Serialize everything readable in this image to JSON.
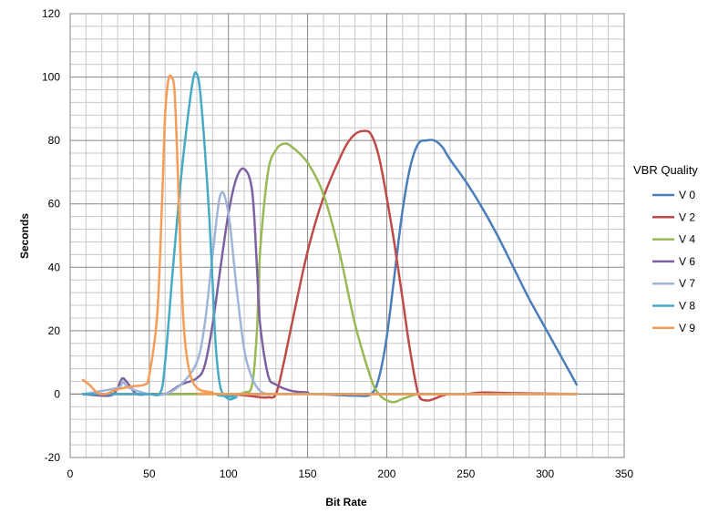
{
  "chart_data": {
    "type": "line",
    "title": "",
    "xlabel": "Bit Rate",
    "ylabel": "Seconds",
    "xlim": [
      0,
      350
    ],
    "ylim": [
      -20,
      120
    ],
    "x_ticks": [
      "0",
      "50",
      "100",
      "150",
      "200",
      "250",
      "300",
      "350"
    ],
    "y_ticks": [
      "-20",
      "0",
      "20",
      "40",
      "60",
      "80",
      "100",
      "120"
    ],
    "grid": true,
    "legend": {
      "title": "VBR Quality",
      "position": "right"
    },
    "series": [
      {
        "name": "V 0",
        "color": "#4a7ebb",
        "x": [
          8,
          25,
          60,
          100,
          150,
          180,
          190,
          195,
          200,
          205,
          210,
          215,
          220,
          225,
          230,
          235,
          240,
          250,
          260,
          270,
          280,
          290,
          300,
          310,
          320
        ],
        "y": [
          0,
          0,
          0,
          0,
          0,
          -0.5,
          0,
          5,
          18,
          38,
          58,
          72,
          79,
          80,
          80,
          78,
          74,
          67,
          59,
          50,
          40,
          30,
          21,
          12,
          3
        ]
      },
      {
        "name": "V 2",
        "color": "#be4b48",
        "x": [
          8,
          60,
          100,
          120,
          125,
          130,
          135,
          140,
          150,
          160,
          170,
          175,
          180,
          185,
          190,
          195,
          200,
          205,
          210,
          215,
          220,
          225,
          230,
          235,
          240,
          250,
          260,
          280,
          320
        ],
        "y": [
          0,
          0,
          0,
          -1,
          -1,
          0,
          10,
          22,
          45,
          62,
          74,
          79,
          82,
          83,
          82,
          75,
          62,
          47,
          30,
          13,
          0,
          -2,
          -1.5,
          -0.5,
          0,
          0,
          0.5,
          0.3,
          0
        ]
      },
      {
        "name": "V 4",
        "color": "#98b954",
        "x": [
          8,
          60,
          100,
          110,
          115,
          118,
          120,
          125,
          130,
          135,
          140,
          150,
          160,
          170,
          180,
          190,
          195,
          200,
          205,
          210,
          220,
          230,
          240,
          320
        ],
        "y": [
          0,
          0,
          0,
          0.5,
          3,
          20,
          45,
          70,
          77,
          79,
          78,
          73,
          63,
          45,
          22,
          5,
          0,
          -2,
          -2.5,
          -1.5,
          0,
          0,
          0,
          0
        ]
      },
      {
        "name": "V 6",
        "color": "#7d60a0",
        "x": [
          8,
          25,
          30,
          33,
          37,
          42,
          50,
          60,
          70,
          80,
          85,
          90,
          95,
          100,
          105,
          110,
          115,
          118,
          120,
          125,
          130,
          140,
          150,
          160,
          320
        ],
        "y": [
          0,
          -0.5,
          2,
          5,
          3,
          0,
          0,
          0,
          3,
          5,
          9,
          22,
          40,
          57,
          68,
          71,
          64,
          40,
          22,
          6,
          3,
          1,
          0.5,
          0,
          0
        ]
      },
      {
        "name": "V 7",
        "color": "#a0b4d8",
        "x": [
          8,
          30,
          33,
          37,
          50,
          60,
          70,
          80,
          85,
          90,
          95,
          100,
          105,
          110,
          115,
          120,
          125,
          130,
          320
        ],
        "y": [
          0,
          2,
          4,
          2,
          0,
          0,
          3,
          10,
          22,
          44,
          63,
          57,
          34,
          14,
          5,
          1,
          0,
          0,
          0
        ]
      },
      {
        "name": "V 8",
        "color": "#46aac5",
        "x": [
          8,
          25,
          40,
          50,
          57,
          60,
          65,
          70,
          75,
          78,
          80,
          82,
          85,
          88,
          90,
          92,
          95,
          100,
          105,
          110,
          320
        ],
        "y": [
          0,
          0,
          0,
          0,
          0.5,
          10,
          40,
          68,
          90,
          100,
          101,
          96,
          78,
          55,
          35,
          15,
          2,
          -1.5,
          -1,
          0,
          0
        ]
      },
      {
        "name": "V 9",
        "color": "#f59d56",
        "x": [
          8,
          12,
          17,
          22,
          30,
          40,
          47,
          50,
          55,
          58,
          60,
          62,
          64,
          66,
          68,
          70,
          72,
          75,
          80,
          90,
          100,
          320
        ],
        "y": [
          4.5,
          3,
          0.5,
          0,
          1.5,
          2.5,
          3,
          6,
          25,
          60,
          88,
          99,
          100,
          95,
          70,
          40,
          20,
          8,
          2,
          0.5,
          0,
          0
        ]
      }
    ]
  }
}
